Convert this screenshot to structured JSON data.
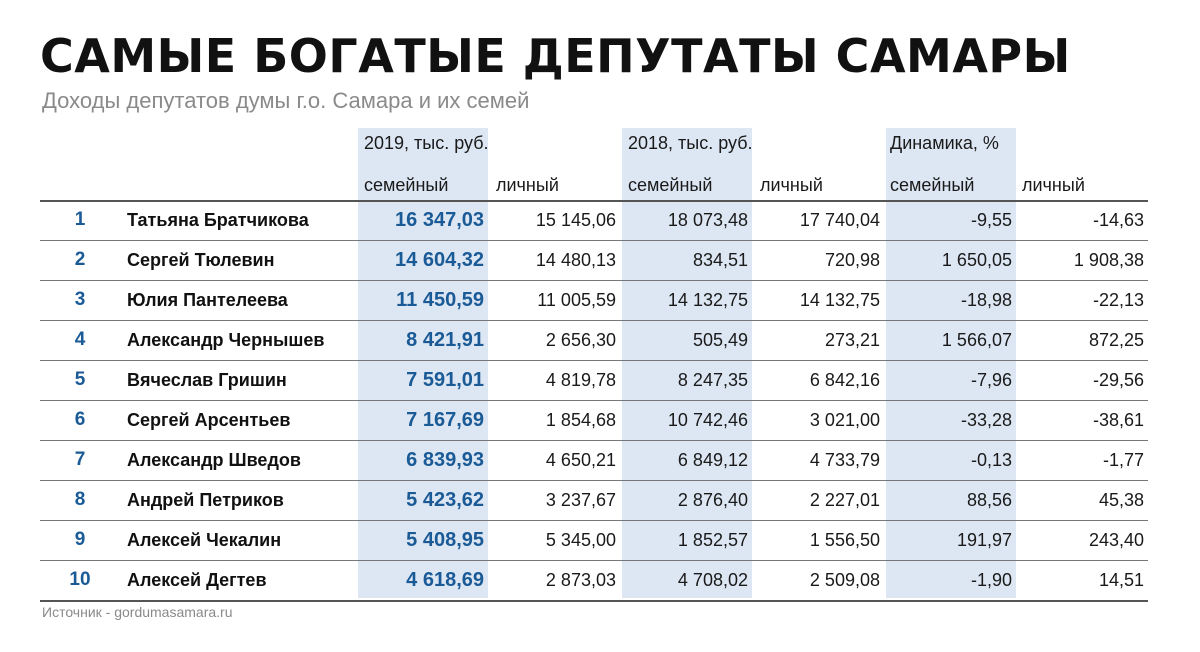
{
  "header": {
    "title": "САМЫЕ БОГАТЫЕ ДЕПУТАТЫ САМАРЫ",
    "subtitle": "Доходы депутатов думы г.о. Самара и их семей"
  },
  "columns": {
    "group_2019": "2019, тыс. руб.",
    "group_2018": "2018, тыс. руб.",
    "group_dyn": "Динамика, %",
    "family": "семейный",
    "personal": "личный"
  },
  "colors": {
    "accent": "#1a5a96",
    "highlight": "#dde7f3"
  },
  "footer": {
    "source": "Источник - gordumasamara.ru"
  },
  "chart_data": {
    "type": "table",
    "title": "САМЫЕ БОГАТЫЕ ДЕПУТАТЫ САМАРЫ",
    "subtitle": "Доходы депутатов думы г.о. Самара и их семей",
    "column_groups": [
      "2019, тыс. руб.",
      "2018, тыс. руб.",
      "Динамика, %"
    ],
    "columns": [
      "семейный",
      "личный",
      "семейный",
      "личный",
      "семейный",
      "личный"
    ],
    "rows": [
      {
        "rank": "1",
        "name": "Татьяна Братчикова",
        "fam2019": "16 347,03",
        "per2019": "15 145,06",
        "fam2018": "18 073,48",
        "per2018": "17 740,04",
        "famDyn": "-9,55",
        "perDyn": "-14,63"
      },
      {
        "rank": "2",
        "name": "Сергей Тюлевин",
        "fam2019": "14 604,32",
        "per2019": "14 480,13",
        "fam2018": "834,51",
        "per2018": "720,98",
        "famDyn": "1 650,05",
        "perDyn": "1 908,38"
      },
      {
        "rank": "3",
        "name": "Юлия Пантелеева",
        "fam2019": "11 450,59",
        "per2019": "11 005,59",
        "fam2018": "14 132,75",
        "per2018": "14 132,75",
        "famDyn": "-18,98",
        "perDyn": "-22,13"
      },
      {
        "rank": "4",
        "name": "Александр Чернышев",
        "fam2019": "8 421,91",
        "per2019": "2 656,30",
        "fam2018": "505,49",
        "per2018": "273,21",
        "famDyn": "1 566,07",
        "perDyn": "872,25"
      },
      {
        "rank": "5",
        "name": "Вячеслав Гришин",
        "fam2019": "7 591,01",
        "per2019": "4 819,78",
        "fam2018": "8 247,35",
        "per2018": "6 842,16",
        "famDyn": "-7,96",
        "perDyn": "-29,56"
      },
      {
        "rank": "6",
        "name": "Сергей Арсентьев",
        "fam2019": "7 167,69",
        "per2019": "1 854,68",
        "fam2018": "10 742,46",
        "per2018": "3 021,00",
        "famDyn": "-33,28",
        "perDyn": "-38,61"
      },
      {
        "rank": "7",
        "name": "Александр Шведов",
        "fam2019": "6 839,93",
        "per2019": "4 650,21",
        "fam2018": "6 849,12",
        "per2018": "4 733,79",
        "famDyn": "-0,13",
        "perDyn": "-1,77"
      },
      {
        "rank": "8",
        "name": "Андрей Петриков",
        "fam2019": "5 423,62",
        "per2019": "3 237,67",
        "fam2018": "2 876,40",
        "per2018": "2 227,01",
        "famDyn": "88,56",
        "perDyn": "45,38"
      },
      {
        "rank": "9",
        "name": "Алексей Чекалин",
        "fam2019": "5 408,95",
        "per2019": "5 345,00",
        "fam2018": "1 852,57",
        "per2018": "1 556,50",
        "famDyn": "191,97",
        "perDyn": "243,40"
      },
      {
        "rank": "10",
        "name": "Алексей Дегтев",
        "fam2019": "4 618,69",
        "per2019": "2 873,03",
        "fam2018": "4 708,02",
        "per2018": "2 509,08",
        "famDyn": "-1,90",
        "perDyn": "14,51"
      }
    ]
  }
}
